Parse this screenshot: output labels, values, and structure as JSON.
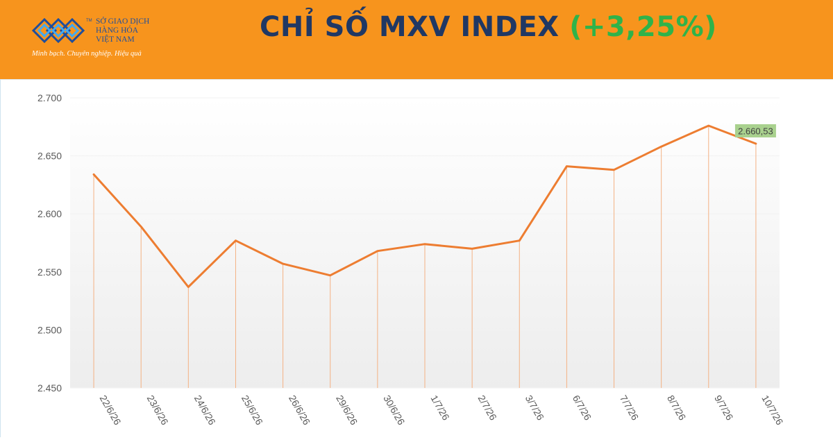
{
  "header": {
    "logo": {
      "name_lines": [
        "SỞ GIAO DỊCH",
        "HÀNG HÓA",
        "VIỆT NAM"
      ],
      "slogan": "Minh bạch. Chuyên nghiệp. Hiệu quả",
      "trademark": "TM"
    },
    "title_main": "CHỈ SỐ MXV INDEX",
    "title_change": "(+3,25%)"
  },
  "colors": {
    "header_bg": "#f7941d",
    "title": "#203864",
    "change_positive": "#2fb34a",
    "line": "#ed7d31",
    "drop_lines": "#f4b183",
    "last_label_bg": "#a9d18e"
  },
  "chart_data": {
    "type": "line",
    "categories": [
      "22/6/26",
      "23/6/26",
      "24/6/26",
      "25/6/26",
      "26/6/26",
      "29/6/26",
      "30/6/26",
      "1/7/26",
      "2/7/26",
      "3/7/26",
      "6/7/26",
      "7/7/26",
      "8/7/26",
      "9/7/26",
      "10/7/26"
    ],
    "values": [
      2634,
      2589,
      2537,
      2577,
      2557,
      2547,
      2568,
      2574,
      2570,
      2577,
      2641,
      2638,
      2658,
      2676,
      2660.53
    ],
    "ylim": [
      2450,
      2700
    ],
    "yticks": [
      "2.700",
      "2.650",
      "2.600",
      "2.550",
      "2.500",
      "2.450"
    ],
    "ytick_values": [
      2700,
      2650,
      2600,
      2550,
      2500,
      2450
    ],
    "data_label_last": "2.660,53",
    "grid": true
  }
}
